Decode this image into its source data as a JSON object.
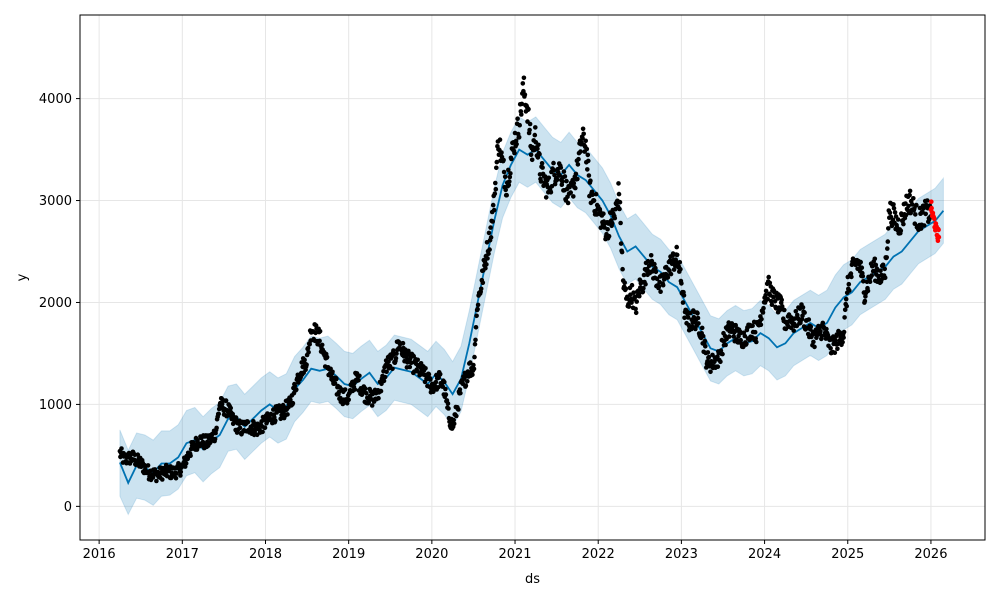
{
  "chart_data": {
    "type": "line",
    "title": "",
    "xlabel": "ds",
    "ylabel": "y",
    "x_range": [
      2015.77,
      2026.65
    ],
    "ylim": [
      -330,
      4820
    ],
    "grid": true,
    "x_ticks": [
      {
        "value": 2016,
        "label": "2016"
      },
      {
        "value": 2017,
        "label": "2017"
      },
      {
        "value": 2018,
        "label": "2018"
      },
      {
        "value": 2019,
        "label": "2019"
      },
      {
        "value": 2020,
        "label": "2020"
      },
      {
        "value": 2021,
        "label": "2021"
      },
      {
        "value": 2022,
        "label": "2022"
      },
      {
        "value": 2023,
        "label": "2023"
      },
      {
        "value": 2024,
        "label": "2024"
      },
      {
        "value": 2025,
        "label": "2025"
      },
      {
        "value": 2026,
        "label": "2026"
      }
    ],
    "y_ticks": [
      {
        "value": 0,
        "label": "0"
      },
      {
        "value": 1000,
        "label": "1000"
      },
      {
        "value": 2000,
        "label": "2000"
      },
      {
        "value": 3000,
        "label": "3000"
      },
      {
        "value": 4000,
        "label": "4000"
      }
    ],
    "colors": {
      "observed": "#000000",
      "forecast_line": "#0072B2",
      "interval_fill": "#0072B2",
      "holdout": "#ff0000",
      "grid": "#e6e6e6",
      "axes": "#000000"
    },
    "series": [
      {
        "kind": "forecast",
        "x": [
          2016.25,
          2016.35,
          2016.45,
          2016.55,
          2016.65,
          2016.75,
          2016.85,
          2016.95,
          2017.05,
          2017.15,
          2017.25,
          2017.35,
          2017.45,
          2017.55,
          2017.65,
          2017.75,
          2017.85,
          2017.95,
          2018.05,
          2018.15,
          2018.25,
          2018.35,
          2018.45,
          2018.55,
          2018.65,
          2018.75,
          2018.85,
          2018.95,
          2019.05,
          2019.15,
          2019.25,
          2019.35,
          2019.45,
          2019.55,
          2019.65,
          2019.75,
          2019.85,
          2019.95,
          2020.05,
          2020.15,
          2020.25,
          2020.35,
          2020.45,
          2020.55,
          2020.65,
          2020.75,
          2020.85,
          2020.95,
          2021.05,
          2021.15,
          2021.25,
          2021.35,
          2021.45,
          2021.55,
          2021.65,
          2021.75,
          2021.85,
          2021.95,
          2022.05,
          2022.15,
          2022.25,
          2022.35,
          2022.45,
          2022.55,
          2022.65,
          2022.75,
          2022.85,
          2022.95,
          2023.05,
          2023.15,
          2023.25,
          2023.35,
          2023.45,
          2023.55,
          2023.65,
          2023.75,
          2023.85,
          2023.95,
          2024.05,
          2024.15,
          2024.25,
          2024.35,
          2024.45,
          2024.55,
          2024.65,
          2024.75,
          2024.85,
          2024.95,
          2025.05,
          2025.15,
          2025.25,
          2025.35,
          2025.45,
          2025.55,
          2025.65,
          2025.75,
          2025.85,
          2025.95,
          2026.05,
          2026.15
        ],
        "yhat": [
          430,
          230,
          400,
          380,
          330,
          420,
          420,
          480,
          620,
          650,
          560,
          640,
          700,
          860,
          880,
          780,
          860,
          940,
          1000,
          940,
          980,
          1150,
          1240,
          1350,
          1330,
          1350,
          1280,
          1200,
          1180,
          1250,
          1310,
          1200,
          1260,
          1360,
          1340,
          1320,
          1260,
          1200,
          1300,
          1220,
          1100,
          1250,
          1600,
          2000,
          2400,
          2800,
          3150,
          3350,
          3500,
          3450,
          3500,
          3400,
          3300,
          3250,
          3350,
          3250,
          3200,
          3100,
          3000,
          2850,
          2650,
          2500,
          2550,
          2450,
          2350,
          2300,
          2200,
          2150,
          2000,
          1850,
          1700,
          1550,
          1520,
          1600,
          1650,
          1600,
          1620,
          1700,
          1650,
          1560,
          1600,
          1700,
          1750,
          1800,
          1750,
          1800,
          1950,
          2050,
          2100,
          2200,
          2250,
          2300,
          2350,
          2450,
          2500,
          2600,
          2700,
          2750,
          2800,
          2900
        ],
        "yhat_lower": [
          100,
          -80,
          80,
          60,
          10,
          100,
          110,
          170,
          300,
          330,
          240,
          320,
          380,
          540,
          560,
          460,
          540,
          620,
          680,
          620,
          660,
          830,
          920,
          1030,
          1010,
          1030,
          960,
          880,
          860,
          930,
          990,
          880,
          940,
          1040,
          1020,
          1000,
          940,
          880,
          980,
          900,
          780,
          930,
          1280,
          1680,
          2080,
          2480,
          2830,
          3030,
          3180,
          3130,
          3180,
          3080,
          2980,
          2930,
          3030,
          2930,
          2880,
          2780,
          2680,
          2530,
          2330,
          2180,
          2230,
          2130,
          2030,
          1980,
          1880,
          1830,
          1680,
          1530,
          1380,
          1230,
          1200,
          1280,
          1330,
          1280,
          1300,
          1380,
          1330,
          1240,
          1280,
          1380,
          1430,
          1480,
          1430,
          1480,
          1630,
          1730,
          1780,
          1880,
          1930,
          1980,
          2030,
          2130,
          2180,
          2280,
          2380,
          2430,
          2480,
          2580
        ],
        "yhat_upper": [
          750,
          550,
          720,
          700,
          650,
          740,
          740,
          800,
          940,
          970,
          880,
          960,
          1020,
          1180,
          1200,
          1100,
          1180,
          1260,
          1320,
          1260,
          1300,
          1470,
          1560,
          1670,
          1650,
          1670,
          1600,
          1520,
          1500,
          1570,
          1630,
          1520,
          1580,
          1680,
          1660,
          1640,
          1580,
          1520,
          1620,
          1540,
          1420,
          1570,
          1920,
          2320,
          2720,
          3120,
          3470,
          3670,
          3820,
          3770,
          3820,
          3720,
          3620,
          3570,
          3670,
          3570,
          3520,
          3420,
          3320,
          3170,
          2970,
          2820,
          2870,
          2770,
          2670,
          2620,
          2520,
          2470,
          2320,
          2170,
          2020,
          1870,
          1840,
          1920,
          1970,
          1920,
          1940,
          2020,
          1970,
          1880,
          1920,
          2020,
          2070,
          2120,
          2070,
          2120,
          2270,
          2370,
          2420,
          2520,
          2570,
          2620,
          2670,
          2770,
          2820,
          2920,
          3020,
          3070,
          3120,
          3220
        ]
      },
      {
        "kind": "observed",
        "anchors": [
          [
            2016.25,
            520
          ],
          [
            2016.3,
            460
          ],
          [
            2016.4,
            480
          ],
          [
            2016.5,
            420
          ],
          [
            2016.6,
            330
          ],
          [
            2016.7,
            310
          ],
          [
            2016.8,
            340
          ],
          [
            2016.9,
            330
          ],
          [
            2017.0,
            380
          ],
          [
            2017.1,
            550
          ],
          [
            2017.2,
            650
          ],
          [
            2017.3,
            620
          ],
          [
            2017.4,
            720
          ],
          [
            2017.45,
            1000
          ],
          [
            2017.55,
            950
          ],
          [
            2017.6,
            850
          ],
          [
            2017.7,
            760
          ],
          [
            2017.8,
            790
          ],
          [
            2017.9,
            760
          ],
          [
            2018.0,
            820
          ],
          [
            2018.1,
            900
          ],
          [
            2018.2,
            920
          ],
          [
            2018.3,
            1000
          ],
          [
            2018.4,
            1300
          ],
          [
            2018.5,
            1450
          ],
          [
            2018.55,
            1750
          ],
          [
            2018.65,
            1650
          ],
          [
            2018.7,
            1500
          ],
          [
            2018.8,
            1250
          ],
          [
            2018.9,
            1100
          ],
          [
            2019.0,
            1050
          ],
          [
            2019.05,
            1200
          ],
          [
            2019.1,
            1250
          ],
          [
            2019.2,
            1100
          ],
          [
            2019.3,
            1050
          ],
          [
            2019.4,
            1200
          ],
          [
            2019.45,
            1380
          ],
          [
            2019.55,
            1450
          ],
          [
            2019.6,
            1600
          ],
          [
            2019.7,
            1450
          ],
          [
            2019.8,
            1380
          ],
          [
            2019.9,
            1300
          ],
          [
            2020.0,
            1180
          ],
          [
            2020.1,
            1250
          ],
          [
            2020.15,
            1150
          ],
          [
            2020.2,
            900
          ],
          [
            2020.25,
            780
          ],
          [
            2020.3,
            950
          ],
          [
            2020.35,
            1150
          ],
          [
            2020.45,
            1350
          ],
          [
            2020.5,
            1350
          ],
          [
            2020.55,
            2000
          ],
          [
            2020.6,
            2200
          ],
          [
            2020.65,
            2450
          ],
          [
            2020.7,
            2650
          ],
          [
            2020.75,
            3000
          ],
          [
            2020.8,
            3600
          ],
          [
            2020.85,
            3350
          ],
          [
            2020.9,
            3150
          ],
          [
            2020.95,
            3400
          ],
          [
            2021.0,
            3600
          ],
          [
            2021.05,
            3750
          ],
          [
            2021.1,
            4100
          ],
          [
            2021.15,
            3900
          ],
          [
            2021.2,
            3450
          ],
          [
            2021.25,
            3650
          ],
          [
            2021.3,
            3300
          ],
          [
            2021.35,
            3200
          ],
          [
            2021.4,
            3100
          ],
          [
            2021.45,
            3250
          ],
          [
            2021.5,
            3300
          ],
          [
            2021.55,
            3300
          ],
          [
            2021.6,
            3150
          ],
          [
            2021.65,
            3000
          ],
          [
            2021.7,
            3150
          ],
          [
            2021.75,
            3300
          ],
          [
            2021.8,
            3600
          ],
          [
            2021.85,
            3550
          ],
          [
            2021.9,
            3100
          ],
          [
            2021.95,
            3000
          ],
          [
            2022.0,
            2900
          ],
          [
            2022.05,
            2800
          ],
          [
            2022.1,
            2700
          ],
          [
            2022.15,
            2800
          ],
          [
            2022.2,
            2850
          ],
          [
            2022.25,
            3100
          ],
          [
            2022.3,
            2200
          ],
          [
            2022.35,
            2000
          ],
          [
            2022.4,
            2100
          ],
          [
            2022.45,
            1950
          ],
          [
            2022.5,
            2150
          ],
          [
            2022.55,
            2200
          ],
          [
            2022.6,
            2400
          ],
          [
            2022.65,
            2350
          ],
          [
            2022.7,
            2250
          ],
          [
            2022.75,
            2150
          ],
          [
            2022.8,
            2250
          ],
          [
            2022.85,
            2350
          ],
          [
            2022.9,
            2400
          ],
          [
            2022.95,
            2450
          ],
          [
            2023.0,
            2200
          ],
          [
            2023.05,
            1850
          ],
          [
            2023.1,
            1800
          ],
          [
            2023.15,
            1850
          ],
          [
            2023.2,
            1800
          ],
          [
            2023.25,
            1700
          ],
          [
            2023.3,
            1450
          ],
          [
            2023.35,
            1400
          ],
          [
            2023.45,
            1450
          ],
          [
            2023.5,
            1600
          ],
          [
            2023.55,
            1700
          ],
          [
            2023.6,
            1750
          ],
          [
            2023.7,
            1650
          ],
          [
            2023.75,
            1650
          ],
          [
            2023.8,
            1700
          ],
          [
            2023.85,
            1750
          ],
          [
            2023.9,
            1700
          ],
          [
            2023.95,
            1850
          ],
          [
            2024.0,
            2050
          ],
          [
            2024.05,
            2150
          ],
          [
            2024.1,
            2050
          ],
          [
            2024.15,
            2000
          ],
          [
            2024.2,
            1950
          ],
          [
            2024.25,
            1800
          ],
          [
            2024.3,
            1850
          ],
          [
            2024.35,
            1800
          ],
          [
            2024.4,
            1850
          ],
          [
            2024.45,
            1900
          ],
          [
            2024.5,
            1800
          ],
          [
            2024.55,
            1700
          ],
          [
            2024.6,
            1650
          ],
          [
            2024.7,
            1750
          ],
          [
            2024.75,
            1650
          ],
          [
            2024.8,
            1550
          ],
          [
            2024.85,
            1600
          ],
          [
            2024.9,
            1650
          ],
          [
            2024.95,
            1700
          ],
          [
            2025.0,
            2150
          ],
          [
            2025.05,
            2300
          ],
          [
            2025.1,
            2400
          ],
          [
            2025.15,
            2350
          ],
          [
            2025.2,
            2100
          ],
          [
            2025.25,
            2200
          ],
          [
            2025.3,
            2350
          ],
          [
            2025.35,
            2300
          ],
          [
            2025.4,
            2250
          ],
          [
            2025.45,
            2300
          ],
          [
            2025.5,
            2900
          ],
          [
            2025.55,
            2850
          ],
          [
            2025.6,
            2750
          ],
          [
            2025.65,
            2800
          ],
          [
            2025.7,
            2950
          ],
          [
            2025.75,
            3000
          ],
          [
            2025.8,
            2900
          ],
          [
            2025.85,
            2800
          ],
          [
            2025.9,
            2850
          ],
          [
            2025.95,
            2900
          ],
          [
            2026.0,
            2850
          ]
        ]
      },
      {
        "kind": "holdout",
        "anchors": [
          [
            2026.0,
            2950
          ],
          [
            2026.02,
            2850
          ],
          [
            2026.04,
            2800
          ],
          [
            2026.06,
            2720
          ],
          [
            2026.08,
            2650
          ],
          [
            2026.1,
            2700
          ]
        ]
      }
    ]
  }
}
